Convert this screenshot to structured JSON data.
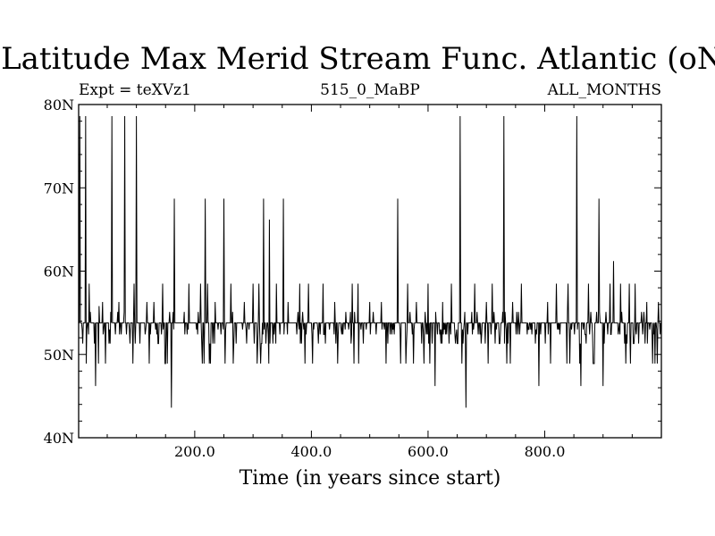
{
  "chart_data": {
    "type": "line",
    "title": "Latitude Max Merid Stream Func. Atlantic (oN)",
    "subtitle_left": "Expt = teXVz1",
    "subtitle_center": "515_0_MaBP",
    "subtitle_right": "ALL_MONTHS",
    "xlabel": "Time (in years since start)",
    "ylabel": "",
    "xlim": [
      1,
      1000
    ],
    "ylim": [
      40,
      80
    ],
    "x_ticks": [
      200,
      400,
      600,
      800
    ],
    "x_tick_labels": [
      "200.0",
      "400.0",
      "600.0",
      "800.0"
    ],
    "y_ticks": [
      40,
      50,
      60,
      70,
      80
    ],
    "y_tick_labels": [
      "40N",
      "50N",
      "60N",
      "70N",
      "80N"
    ],
    "grid": false,
    "legend": "none",
    "series": [
      {
        "color": "#000000",
        "baseline": 53.8,
        "x_start": 1,
        "x_step": 1,
        "spikes": [
          {
            "x": 3,
            "y": 78.6
          },
          {
            "x": 8,
            "y": 51.3
          },
          {
            "x": 13,
            "y": 78.6
          },
          {
            "x": 19,
            "y": 58.5
          },
          {
            "x": 30,
            "y": 46.2
          },
          {
            "x": 36,
            "y": 55.8
          },
          {
            "x": 42,
            "y": 56.3
          },
          {
            "x": 58,
            "y": 78.6
          },
          {
            "x": 70,
            "y": 56.3
          },
          {
            "x": 80,
            "y": 78.6
          },
          {
            "x": 96,
            "y": 58.5
          },
          {
            "x": 100,
            "y": 78.6
          },
          {
            "x": 118,
            "y": 56.3
          },
          {
            "x": 130,
            "y": 56.3
          },
          {
            "x": 145,
            "y": 58.5
          },
          {
            "x": 160,
            "y": 43.6
          },
          {
            "x": 165,
            "y": 68.7
          },
          {
            "x": 190,
            "y": 58.5
          },
          {
            "x": 210,
            "y": 58.5
          },
          {
            "x": 218,
            "y": 68.7
          },
          {
            "x": 222,
            "y": 58.5
          },
          {
            "x": 235,
            "y": 56.3
          },
          {
            "x": 250,
            "y": 68.7
          },
          {
            "x": 262,
            "y": 58.5
          },
          {
            "x": 285,
            "y": 56.3
          },
          {
            "x": 300,
            "y": 58.5
          },
          {
            "x": 310,
            "y": 58.5
          },
          {
            "x": 318,
            "y": 68.7
          },
          {
            "x": 328,
            "y": 66.2
          },
          {
            "x": 340,
            "y": 58.5
          },
          {
            "x": 352,
            "y": 68.7
          },
          {
            "x": 360,
            "y": 56.3
          },
          {
            "x": 380,
            "y": 58.5
          },
          {
            "x": 395,
            "y": 58.5
          },
          {
            "x": 420,
            "y": 58.5
          },
          {
            "x": 440,
            "y": 56.3
          },
          {
            "x": 470,
            "y": 58.5
          },
          {
            "x": 480,
            "y": 58.5
          },
          {
            "x": 500,
            "y": 56.3
          },
          {
            "x": 520,
            "y": 56.3
          },
          {
            "x": 548,
            "y": 68.7
          },
          {
            "x": 565,
            "y": 58.5
          },
          {
            "x": 580,
            "y": 56.3
          },
          {
            "x": 600,
            "y": 58.5
          },
          {
            "x": 612,
            "y": 46.2
          },
          {
            "x": 625,
            "y": 56.3
          },
          {
            "x": 640,
            "y": 58.5
          },
          {
            "x": 655,
            "y": 78.6
          },
          {
            "x": 665,
            "y": 43.6
          },
          {
            "x": 680,
            "y": 58.5
          },
          {
            "x": 700,
            "y": 56.3
          },
          {
            "x": 710,
            "y": 58.5
          },
          {
            "x": 730,
            "y": 78.6
          },
          {
            "x": 745,
            "y": 56.3
          },
          {
            "x": 760,
            "y": 58.5
          },
          {
            "x": 790,
            "y": 46.2
          },
          {
            "x": 805,
            "y": 56.3
          },
          {
            "x": 820,
            "y": 58.5
          },
          {
            "x": 840,
            "y": 58.5
          },
          {
            "x": 855,
            "y": 78.6
          },
          {
            "x": 862,
            "y": 46.2
          },
          {
            "x": 875,
            "y": 58.5
          },
          {
            "x": 893,
            "y": 68.7
          },
          {
            "x": 900,
            "y": 46.2
          },
          {
            "x": 912,
            "y": 58.5
          },
          {
            "x": 918,
            "y": 61.2
          },
          {
            "x": 930,
            "y": 58.5
          },
          {
            "x": 945,
            "y": 58.5
          },
          {
            "x": 955,
            "y": 58.5
          },
          {
            "x": 975,
            "y": 56.3
          },
          {
            "x": 995,
            "y": 56.3
          }
        ]
      }
    ]
  }
}
